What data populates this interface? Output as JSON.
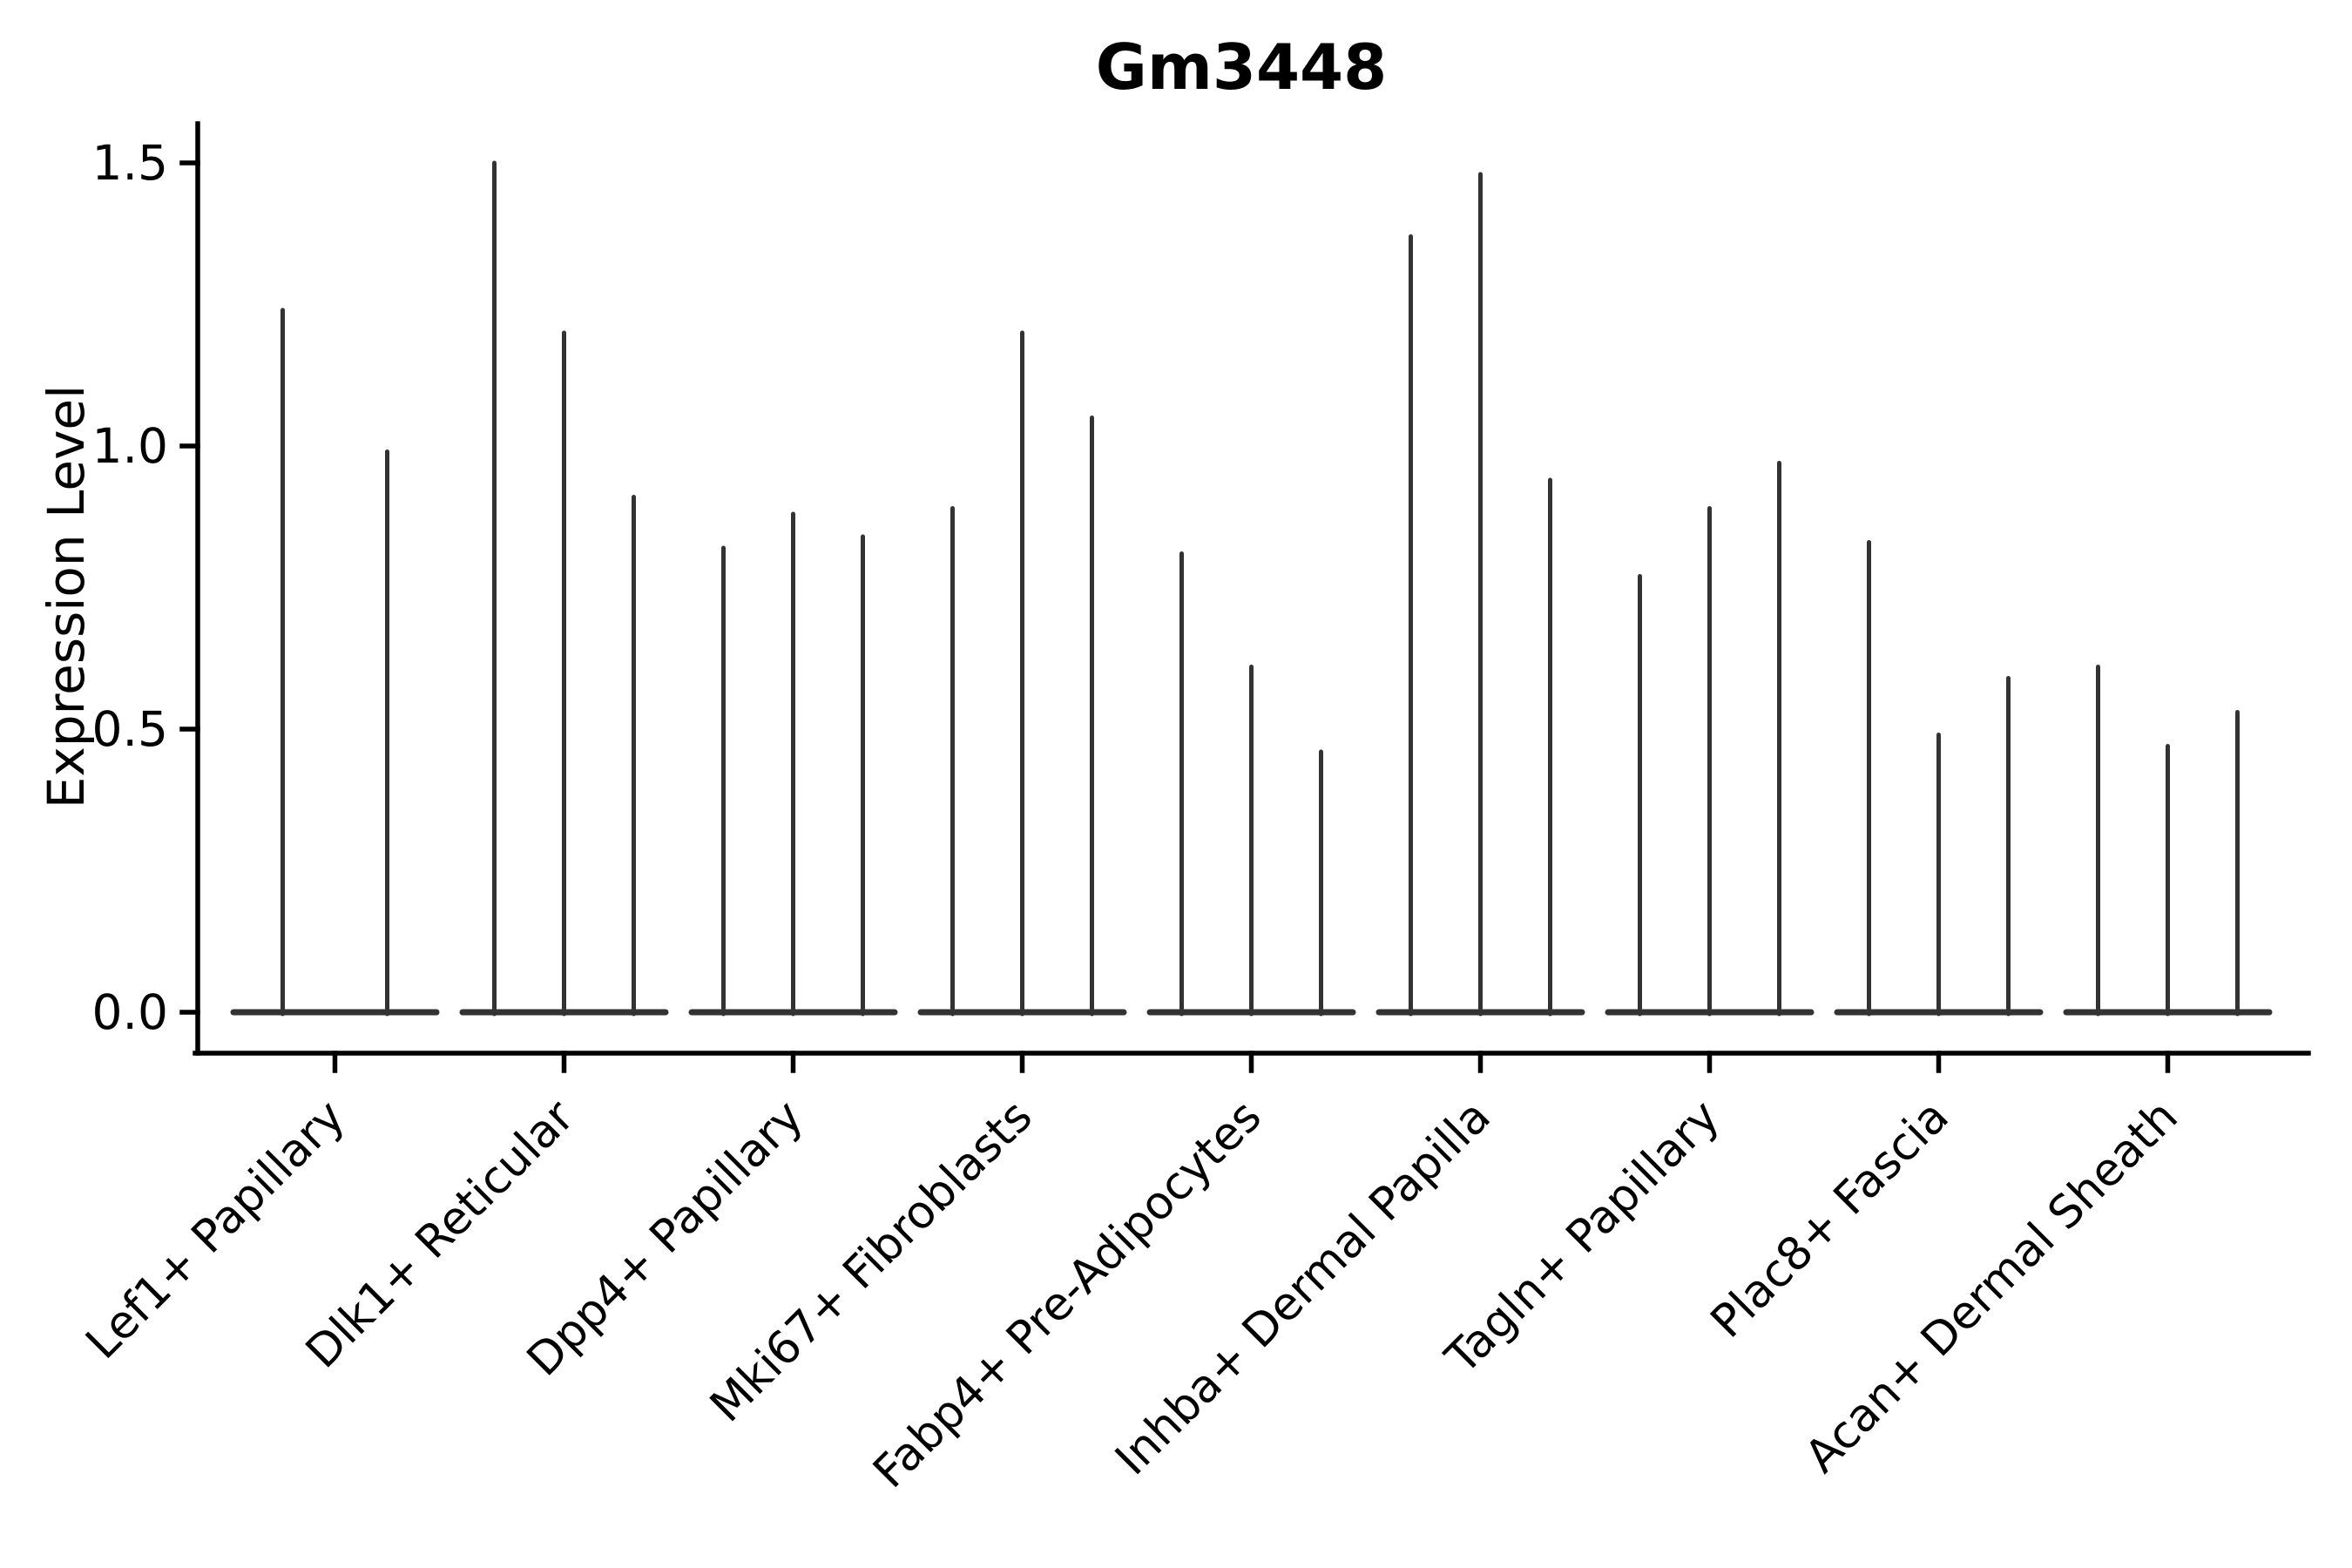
{
  "colors": {
    "violin": "#333333",
    "axis": "#000000",
    "text": "#000000",
    "background": "#ffffff"
  },
  "chart_data": {
    "type": "violin",
    "title": "Gm3448",
    "ylabel": "Expression Level",
    "xlabel": "",
    "ylim": [
      -0.07,
      1.57
    ],
    "yticks": [
      0,
      0.5,
      1,
      1.5
    ],
    "ytick_labels": [
      "0.0",
      "0.5",
      "1.0",
      "1.5"
    ],
    "grid": false,
    "legend": "none",
    "violin_style": "flat zero-density base at y=0 with a thin vertical spike rising to each violin's maximum expression value",
    "categories": [
      "Lef1+ Papillary",
      "Dlk1+ Reticular",
      "Dpp4+ Papillary",
      "Mki67+ Fibroblasts",
      "Fabp4+ Pre-Adipocytes",
      "Inhba+ Dermal Papilla",
      "Tagln+ Papillary",
      "Plac8+ Fascia",
      "Acan+ Dermal Sheath"
    ],
    "groups": [
      {
        "label": "Lef1+ Papillary",
        "violin_maxima": [
          1.24,
          0.99
        ]
      },
      {
        "label": "Dlk1+ Reticular",
        "violin_maxima": [
          1.5,
          1.2,
          0.91
        ]
      },
      {
        "label": "Dpp4+ Papillary",
        "violin_maxima": [
          0.82,
          0.88,
          0.84
        ]
      },
      {
        "label": "Mki67+ Fibroblasts",
        "violin_maxima": [
          0.89,
          1.2,
          1.05
        ]
      },
      {
        "label": "Fabp4+ Pre-Adipocytes",
        "violin_maxima": [
          0.81,
          0.61,
          0.46
        ]
      },
      {
        "label": "Inhba+ Dermal Papilla",
        "violin_maxima": [
          1.37,
          1.48,
          0.94
        ]
      },
      {
        "label": "Tagln+ Papillary",
        "violin_maxima": [
          0.77,
          0.89,
          0.97
        ]
      },
      {
        "label": "Plac8+ Fascia",
        "violin_maxima": [
          0.83,
          0.49,
          0.59
        ]
      },
      {
        "label": "Acan+ Dermal Sheath",
        "violin_maxima": [
          0.61,
          0.47,
          0.53
        ]
      }
    ]
  }
}
